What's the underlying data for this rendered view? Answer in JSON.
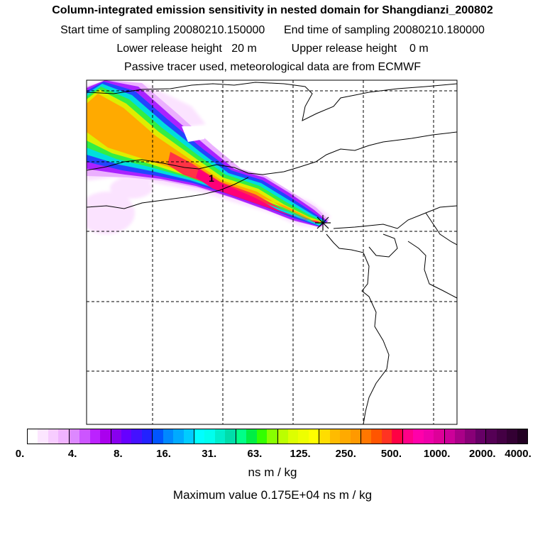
{
  "header": {
    "title": "Column-integrated emission sensitivity in nested domain for Shangdianzi_200802",
    "sampling": "Start time of sampling 20080210.150000      End time of sampling 20080210.180000",
    "release": "Lower release height   20 m           Upper release height    0 m",
    "tracer": "Passive tracer used, meteorological data are from ECMWF"
  },
  "map": {
    "marker_label": "1",
    "receptor_symbol": "asterisk"
  },
  "legend": {
    "ticks": [
      "0.",
      "4.",
      "8.",
      "16.",
      "31.",
      "63.",
      "125.",
      "250.",
      "500.",
      "1000.",
      "2000.",
      "4000."
    ],
    "colors": [
      "#ffffff",
      "#fce6ff",
      "#f7ccff",
      "#f0b3ff",
      "#dd88ff",
      "#cc55ff",
      "#bb22ff",
      "#aa00ee",
      "#8800ee",
      "#6600ff",
      "#4411ff",
      "#2222ff",
      "#0055ff",
      "#0088ff",
      "#00aaff",
      "#00ccff",
      "#00ffff",
      "#00ffee",
      "#00eecc",
      "#00ddaa",
      "#00ff88",
      "#00ee44",
      "#33ff00",
      "#88ff00",
      "#bbff00",
      "#ddff00",
      "#eeff00",
      "#ffff00",
      "#ffdd00",
      "#ffbb00",
      "#ffaa00",
      "#ff9900",
      "#ff7700",
      "#ff5500",
      "#ff3322",
      "#ff0044",
      "#ff0088",
      "#ff00aa",
      "#ee00aa",
      "#dd0099",
      "#cc0099",
      "#aa0088",
      "#880077",
      "#660066",
      "#550055",
      "#440044",
      "#330033",
      "#220022"
    ],
    "units": "ns m / kg",
    "max_value": "Maximum value  0.175E+04 ns m / kg"
  }
}
